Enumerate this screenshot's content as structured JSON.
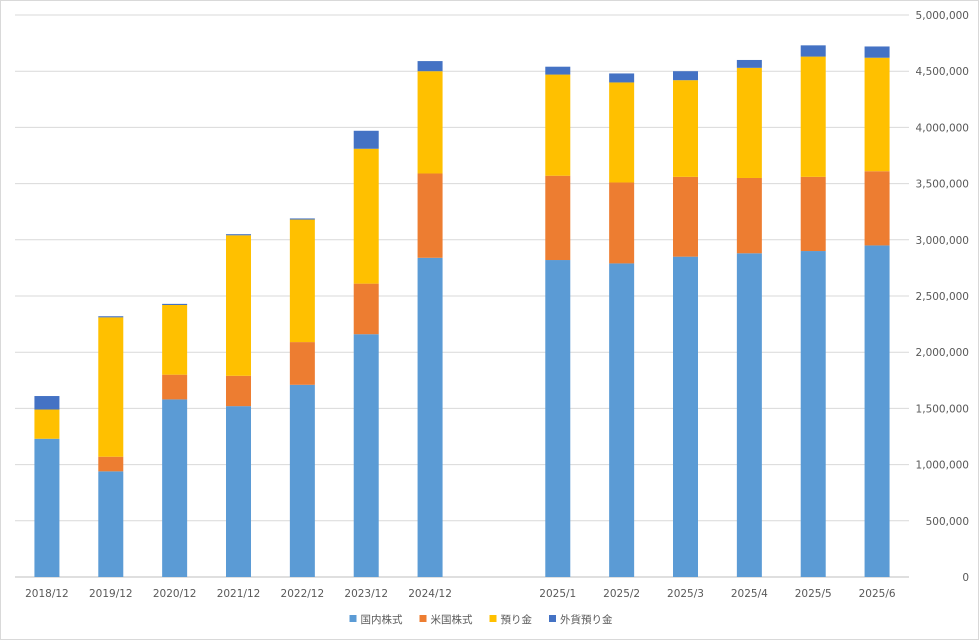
{
  "chart_data": {
    "type": "bar",
    "stacked": true,
    "categories": [
      "2018/12",
      "2019/12",
      "2020/12",
      "2021/12",
      "2022/12",
      "2023/12",
      "2024/12",
      "",
      "2025/1",
      "2025/2",
      "2025/3",
      "2025/4",
      "2025/5",
      "2025/6"
    ],
    "series": [
      {
        "name": "国内株式",
        "color": "#5b9bd5",
        "values": [
          1230000,
          940000,
          1580000,
          1520000,
          1710000,
          2160000,
          2840000,
          0,
          2820000,
          2790000,
          2850000,
          2880000,
          2900000,
          2950000
        ]
      },
      {
        "name": "米国株式",
        "color": "#ed7d31",
        "values": [
          0,
          130000,
          220000,
          270000,
          380000,
          450000,
          750000,
          0,
          750000,
          720000,
          710000,
          670000,
          660000,
          660000
        ]
      },
      {
        "name": "預り金",
        "color": "#ffc000",
        "values": [
          260000,
          1240000,
          620000,
          1250000,
          1090000,
          1200000,
          910000,
          0,
          900000,
          890000,
          860000,
          980000,
          1070000,
          1010000
        ]
      },
      {
        "name": "外貨預り金",
        "color": "#4472c4",
        "values": [
          120000,
          10000,
          10000,
          10000,
          10000,
          160000,
          90000,
          0,
          70000,
          80000,
          80000,
          70000,
          100000,
          100000
        ]
      }
    ],
    "y_axis": {
      "position": "right",
      "min": 0,
      "max": 5000000,
      "step": 500000,
      "tick_labels": [
        "0",
        "500,000",
        "1,000,000",
        "1,500,000",
        "2,000,000",
        "2,500,000",
        "3,000,000",
        "3,500,000",
        "4,000,000",
        "4,500,000",
        "5,000,000"
      ]
    },
    "grid": true,
    "legend": "bottom",
    "title": "",
    "xlabel": "",
    "ylabel": ""
  }
}
